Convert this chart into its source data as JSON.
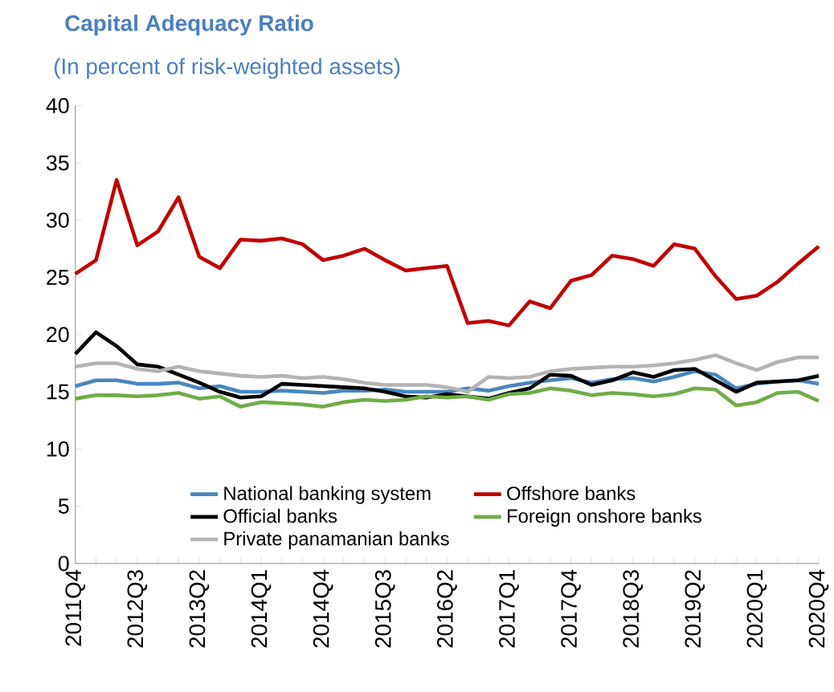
{
  "chart_data": {
    "type": "line",
    "title": "Capital Adequacy Ratio",
    "subtitle": "(In percent of risk-weighted assets)",
    "categories": [
      "2011Q4",
      null,
      null,
      "2012Q3",
      null,
      null,
      "2013Q2",
      null,
      null,
      "2014Q1",
      null,
      null,
      "2014Q4",
      null,
      null,
      "2015Q3",
      null,
      null,
      "2016Q2",
      null,
      null,
      "2017Q1",
      null,
      null,
      "2017Q4",
      null,
      null,
      "2018Q3",
      null,
      null,
      "2019Q2",
      null,
      null,
      "2020Q1",
      null,
      null,
      "2020Q4"
    ],
    "series": [
      {
        "name": "National banking system",
        "color": "#4a86bd",
        "values": [
          15.5,
          16.0,
          16.0,
          15.7,
          15.7,
          15.8,
          15.3,
          15.5,
          15.0,
          15.0,
          15.1,
          15.0,
          14.9,
          15.1,
          15.1,
          15.2,
          15.0,
          15.0,
          15.0,
          15.3,
          15.1,
          15.5,
          15.8,
          16.0,
          16.2,
          15.8,
          16.1,
          16.2,
          15.9,
          16.3,
          16.8,
          16.5,
          15.3,
          15.7,
          15.9,
          16.0,
          15.7
        ]
      },
      {
        "name": "Offshore banks",
        "color": "#c00000",
        "values": [
          25.3,
          26.5,
          33.5,
          27.8,
          29.0,
          32.0,
          26.8,
          25.8,
          28.3,
          28.2,
          28.4,
          27.9,
          26.5,
          26.9,
          27.5,
          26.5,
          25.6,
          25.8,
          26.0,
          21.0,
          21.2,
          20.8,
          22.9,
          22.3,
          24.7,
          25.2,
          26.9,
          26.6,
          26.0,
          27.9,
          27.5,
          25.1,
          23.1,
          23.4,
          24.6,
          26.2,
          27.7
        ]
      },
      {
        "name": "Official banks",
        "color": "#000000",
        "values": [
          18.3,
          20.2,
          19.0,
          17.4,
          17.2,
          16.5,
          15.8,
          15.0,
          14.5,
          14.6,
          15.7,
          15.6,
          15.5,
          15.4,
          15.3,
          15.0,
          14.6,
          14.5,
          14.8,
          14.6,
          14.4,
          14.9,
          15.3,
          16.5,
          16.4,
          15.6,
          16.0,
          16.7,
          16.3,
          16.9,
          17.0,
          16.0,
          15.0,
          15.8,
          15.9,
          16.0,
          16.4
        ]
      },
      {
        "name": "Foreign onshore banks",
        "color": "#70ad47",
        "values": [
          14.4,
          14.7,
          14.7,
          14.6,
          14.7,
          14.9,
          14.4,
          14.6,
          13.7,
          14.1,
          14.0,
          13.9,
          13.7,
          14.1,
          14.3,
          14.2,
          14.3,
          14.6,
          14.5,
          14.6,
          14.3,
          14.8,
          14.9,
          15.3,
          15.1,
          14.7,
          14.9,
          14.8,
          14.6,
          14.8,
          15.3,
          15.2,
          13.8,
          14.1,
          14.9,
          15.0,
          14.2
        ]
      },
      {
        "name": "Private panamanian banks",
        "color": "#b4b4b4",
        "values": [
          17.2,
          17.5,
          17.5,
          17.0,
          16.8,
          17.2,
          16.8,
          16.6,
          16.4,
          16.3,
          16.4,
          16.2,
          16.3,
          16.1,
          15.8,
          15.6,
          15.6,
          15.6,
          15.4,
          15.0,
          16.3,
          16.2,
          16.3,
          16.8,
          17.0,
          17.1,
          17.2,
          17.2,
          17.3,
          17.5,
          17.8,
          18.2,
          17.5,
          16.9,
          17.6,
          18.0,
          18.0
        ]
      }
    ],
    "ylim": [
      0,
      40
    ],
    "yticks": [
      0,
      5,
      10,
      15,
      20,
      25,
      30,
      35,
      40
    ],
    "grid": false,
    "legend": "bottom",
    "marker": "none",
    "line_style": "solid"
  }
}
